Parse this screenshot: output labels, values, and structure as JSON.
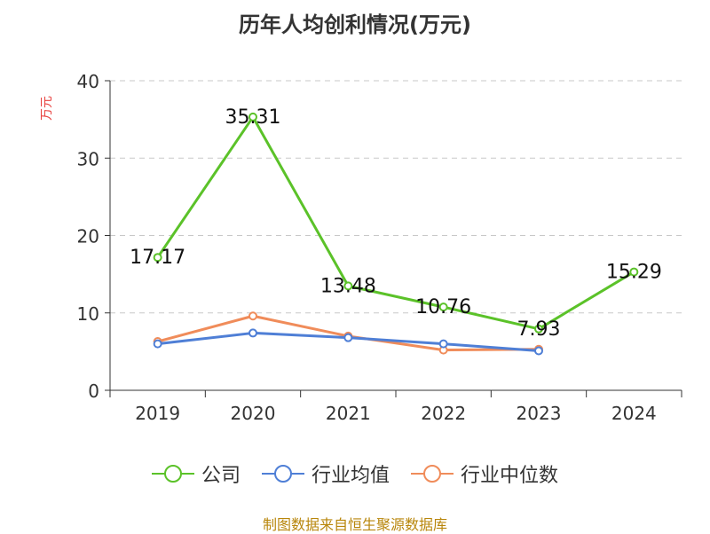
{
  "title": "历年人均创利情况(万元)",
  "footer": "制图数据来自恒生聚源数据库",
  "chart_data": {
    "type": "line",
    "title": "历年人均创利情况(万元)",
    "ylabel": "万元",
    "xlabel": "",
    "categories": [
      "2019",
      "2020",
      "2021",
      "2022",
      "2023",
      "2024"
    ],
    "ylim": [
      0,
      40
    ],
    "yticks": [
      0,
      10,
      20,
      30,
      40
    ],
    "grid": true,
    "legend_position": "bottom",
    "series": [
      {
        "name": "公司",
        "color": "#5bc229",
        "values": [
          17.17,
          35.31,
          13.48,
          10.76,
          7.93,
          15.29
        ],
        "labels": [
          "17.17",
          "35.31",
          "13.48",
          "10.76",
          "7.93",
          "15.29"
        ]
      },
      {
        "name": "行业均值",
        "color": "#4f7fd6",
        "values": [
          6.0,
          7.4,
          6.8,
          6.0,
          5.1,
          null
        ],
        "labels": []
      },
      {
        "name": "行业中位数",
        "color": "#f08c5a",
        "values": [
          6.3,
          9.6,
          7.0,
          5.2,
          5.3,
          null
        ],
        "labels": []
      }
    ]
  }
}
